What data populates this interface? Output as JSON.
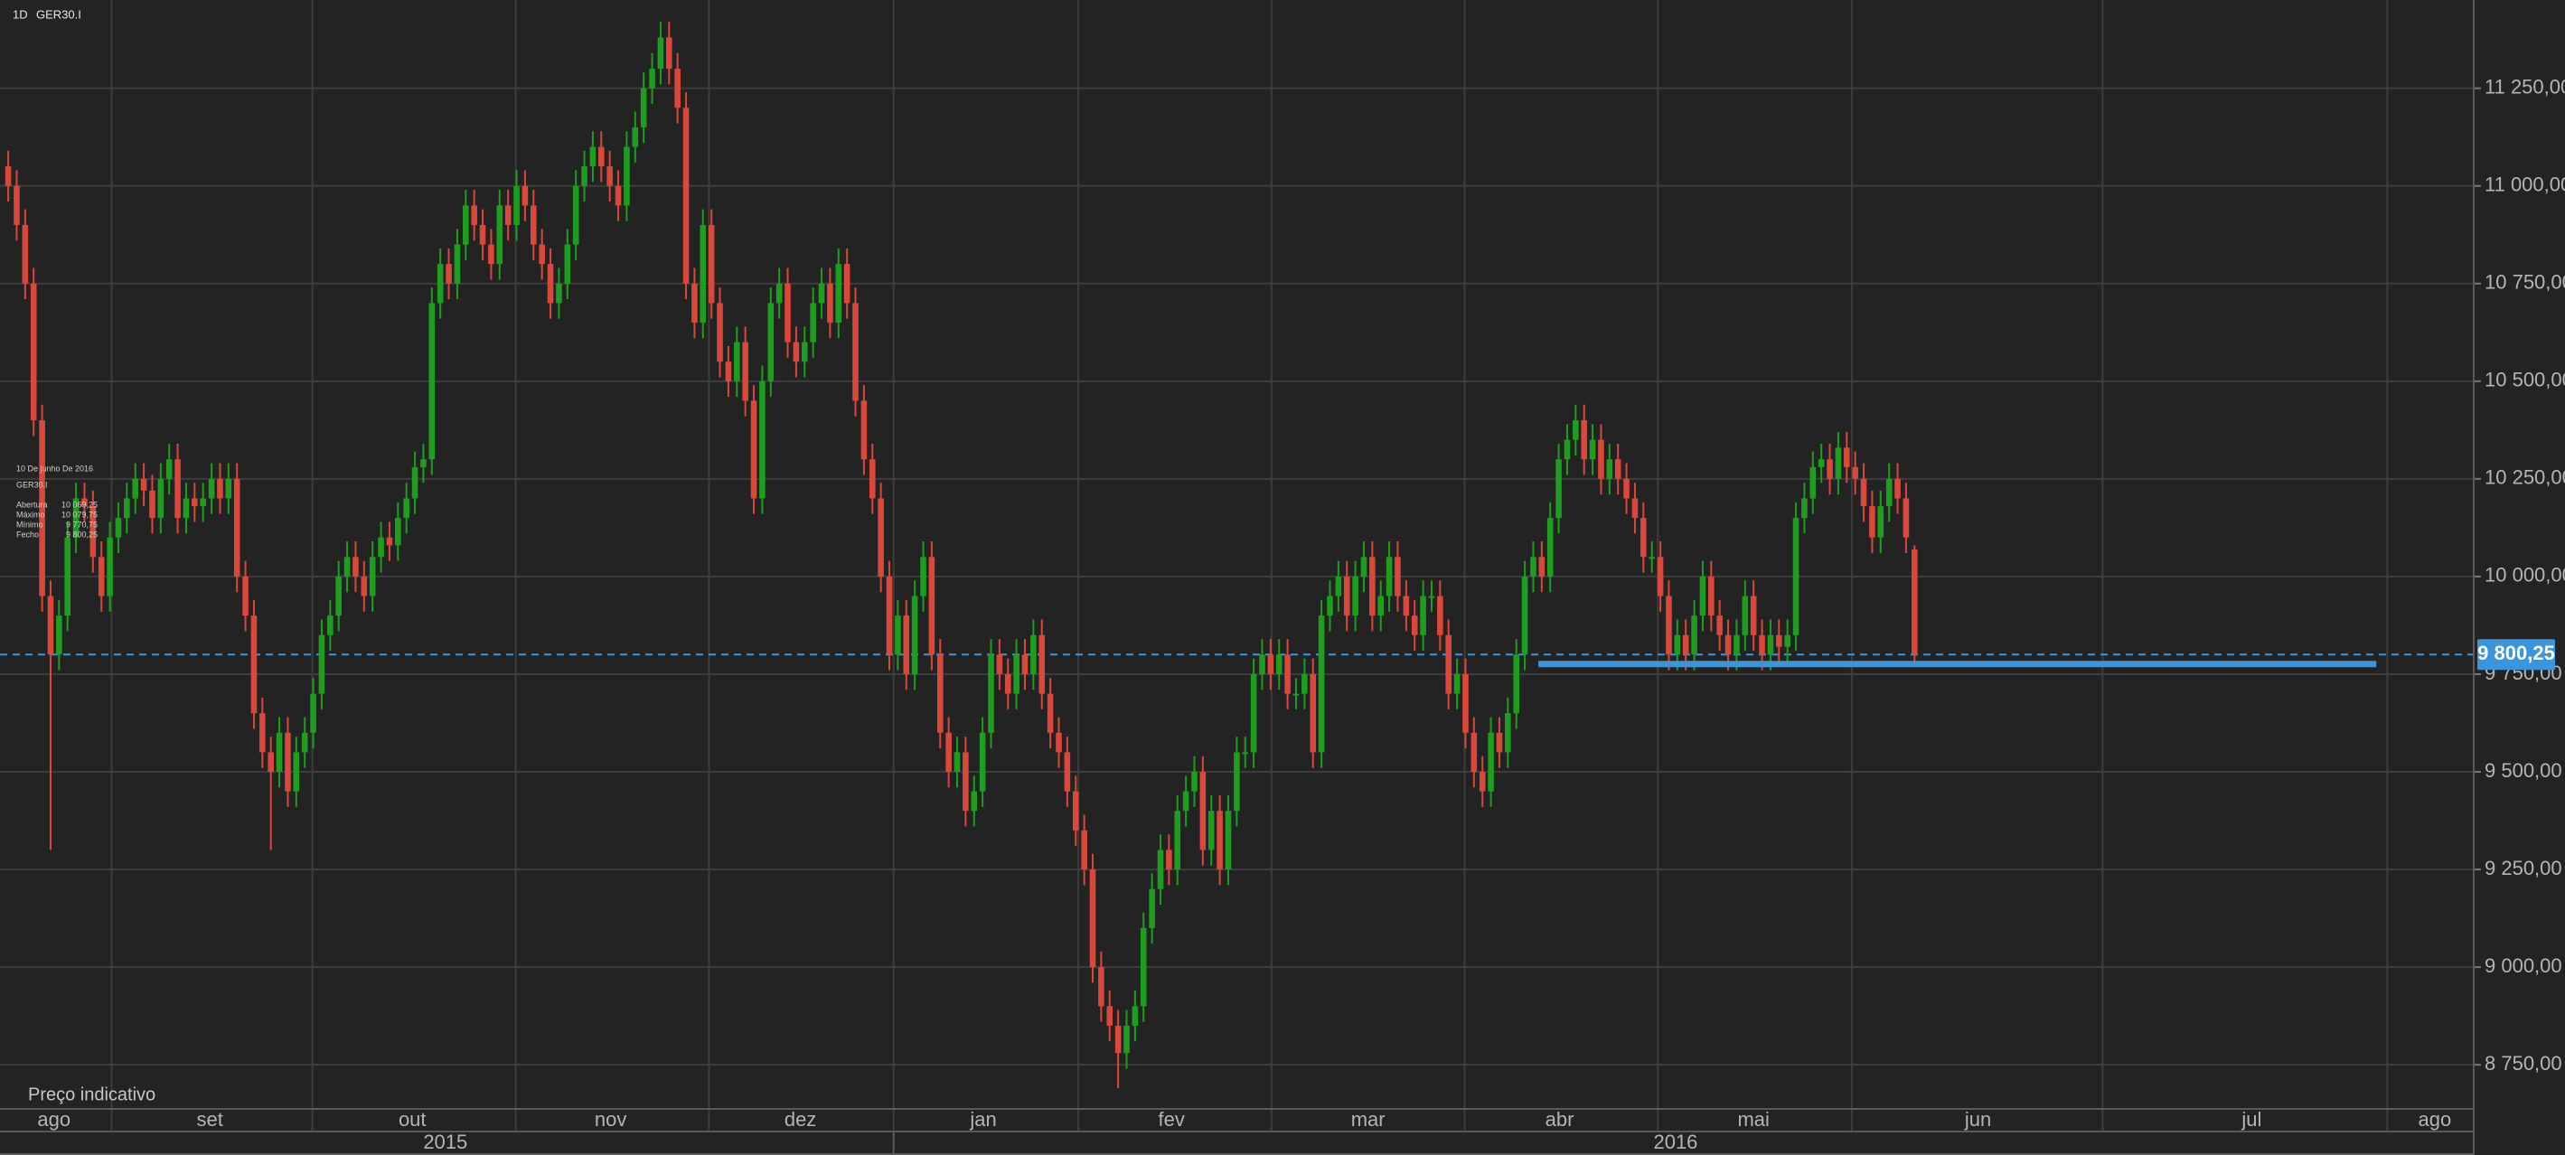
{
  "header": {
    "timeframe": "1D",
    "symbol": "GER30.I"
  },
  "info_box": {
    "date": "10 De junho De 2016",
    "symbol": "GER30.I",
    "rows": [
      {
        "label": "Abertura",
        "value": "10 069,25"
      },
      {
        "label": "Máximo",
        "value": "10 079,75"
      },
      {
        "label": "Mínimo",
        "value": "9 770,75"
      },
      {
        "label": "Fecho",
        "value": "9 800,25"
      }
    ]
  },
  "footer_note": "Preço indicativo",
  "chart_data": {
    "type": "candlestick",
    "up_color": "#1e9e1e",
    "down_color": "#d9483b",
    "xlim": [
      -0.97,
      291.0
    ],
    "ylim": [
      8637,
      11476
    ],
    "yticks": [
      {
        "value": 8750,
        "label": "8 750,00"
      },
      {
        "value": 9000,
        "label": "9 000,00"
      },
      {
        "value": 9250,
        "label": "9 250,00"
      },
      {
        "value": 9500,
        "label": "9 500,00"
      },
      {
        "value": 9750,
        "label": "9 750,00"
      },
      {
        "value": 10000,
        "label": "10 000,00"
      },
      {
        "value": 10250,
        "label": "10 250,00"
      },
      {
        "value": 10500,
        "label": "10 500,00"
      },
      {
        "value": 10750,
        "label": "10 750,00"
      },
      {
        "value": 11000,
        "label": "11 000,00"
      },
      {
        "value": 11250,
        "label": "11 250,00"
      }
    ],
    "month_ticks": [
      {
        "value": 5.4,
        "label": "ago"
      },
      {
        "value": 23.8,
        "label": "set"
      },
      {
        "value": 47.7,
        "label": "out"
      },
      {
        "value": 71.1,
        "label": "nov"
      },
      {
        "value": 93.5,
        "label": "dez"
      },
      {
        "value": 115.1,
        "label": "jan"
      },
      {
        "value": 137.3,
        "label": "fev"
      },
      {
        "value": 160.5,
        "label": "mar"
      },
      {
        "value": 183.1,
        "label": "abr"
      },
      {
        "value": 206.0,
        "label": "mai"
      },
      {
        "value": 232.5,
        "label": "jun"
      },
      {
        "value": 264.8,
        "label": "jul"
      },
      {
        "value": 286.4,
        "label": "ago"
      }
    ],
    "month_boundaries": [
      12.2,
      35.9,
      59.9,
      82.7,
      104.5,
      126.3,
      149.1,
      171.9,
      194.7,
      217.6,
      247.2,
      280.8
    ],
    "year_ticks": [
      {
        "value": 51.6,
        "label": "2015"
      },
      {
        "value": 196.8,
        "label": "2016"
      }
    ],
    "year_boundary": 104.5,
    "grid": true,
    "current_price": {
      "value": 9800.25,
      "label": "9 800,25",
      "color": "#3a95dd"
    },
    "support_line": {
      "value": 9776,
      "x": [
        180.6,
        279.5
      ],
      "color": "#3a95dd"
    },
    "open": [
      11050,
      11000,
      10900,
      10750,
      10400,
      9950,
      9800,
      9900,
      10100,
      10200,
      10180,
      10050,
      9950,
      10100,
      10150,
      10200,
      10250,
      10220,
      10150,
      10250,
      10300,
      10150,
      10200,
      10180,
      10200,
      10250,
      10200,
      10250,
      10000,
      9900,
      9650,
      9550,
      9500,
      9600,
      9450,
      9550,
      9600,
      9700,
      9850,
      9900,
      10000,
      10050,
      10000,
      9950,
      10050,
      10100,
      10080,
      10150,
      10200,
      10280,
      10300,
      10700,
      10800,
      10750,
      10850,
      10950,
      10900,
      10850,
      10800,
      10950,
      10900,
      11000,
      10950,
      10850,
      10800,
      10700,
      10750,
      10850,
      11000,
      11050,
      11100,
      11050,
      11000,
      10950,
      11100,
      11150,
      11250,
      11300,
      11380,
      11300,
      11200,
      10750,
      10650,
      10900,
      10700,
      10550,
      10500,
      10600,
      10450,
      10200,
      10500,
      10700,
      10750,
      10600,
      10550,
      10600,
      10700,
      10750,
      10650,
      10800,
      10700,
      10450,
      10300,
      10200,
      10000,
      9800,
      9900,
      9750,
      9950,
      10050,
      9800,
      9600,
      9500,
      9550,
      9400,
      9450,
      9600,
      9800,
      9750,
      9700,
      9800,
      9750,
      9850,
      9700,
      9600,
      9550,
      9450,
      9350,
      9250,
      9000,
      8900,
      8850,
      8780,
      8850,
      8900,
      9100,
      9200,
      9300,
      9250,
      9400,
      9450,
      9500,
      9300,
      9400,
      9250,
      9400,
      9550,
      9550,
      9750,
      9800,
      9750,
      9800,
      9700,
      9700,
      9750,
      9550,
      9900,
      9950,
      10000,
      9900,
      10000,
      10050,
      9900,
      9950,
      10050,
      9950,
      9900,
      9850,
      9950,
      9950,
      9850,
      9700,
      9750,
      9600,
      9500,
      9450,
      9600,
      9550,
      9650,
      9800,
      10000,
      10050,
      10000,
      10150,
      10300,
      10350,
      10400,
      10300,
      10350,
      10250,
      10300,
      10250,
      10200,
      10150,
      10050,
      10050,
      9950,
      9800,
      9850,
      9800,
      9900,
      10000,
      9900,
      9850,
      9800,
      9850,
      9950,
      9850,
      9800,
      9850,
      9820,
      9850,
      10150,
      10200,
      10280,
      10300,
      10250,
      10330,
      10280,
      10250,
      10180,
      10100,
      10180,
      10250,
      10200,
      10069.25
    ],
    "high": [
      11090,
      11040,
      10940,
      10790,
      10440,
      9990,
      9940,
      10140,
      10240,
      10240,
      10220,
      10090,
      10140,
      10190,
      10240,
      10290,
      10290,
      10260,
      10290,
      10340,
      10340,
      10240,
      10240,
      10240,
      10290,
      10290,
      10290,
      10290,
      10040,
      9940,
      9690,
      9590,
      9640,
      9640,
      9590,
      9640,
      9740,
      9890,
      9940,
      10040,
      10090,
      10090,
      10040,
      10090,
      10140,
      10140,
      10190,
      10240,
      10320,
      10340,
      10740,
      10840,
      10840,
      10890,
      10990,
      10990,
      10940,
      10890,
      10990,
      10990,
      11040,
      11040,
      10990,
      10890,
      10840,
      10790,
      10890,
      11040,
      11090,
      11140,
      11140,
      11090,
      11040,
      11140,
      11190,
      11290,
      11340,
      11420,
      11420,
      11340,
      11240,
      10790,
      10940,
      10940,
      10740,
      10590,
      10640,
      10640,
      10490,
      10540,
      10740,
      10790,
      10790,
      10640,
      10640,
      10740,
      10790,
      10790,
      10840,
      10840,
      10740,
      10490,
      10340,
      10240,
      10040,
      9940,
      9940,
      9990,
      10090,
      10090,
      9840,
      9640,
      9590,
      9590,
      9490,
      9640,
      9840,
      9840,
      9790,
      9840,
      9840,
      9890,
      9890,
      9740,
      9640,
      9590,
      9490,
      9390,
      9290,
      9040,
      8940,
      8890,
      8890,
      8940,
      9140,
      9240,
      9340,
      9340,
      9440,
      9490,
      9540,
      9540,
      9440,
      9440,
      9440,
      9590,
      9590,
      9790,
      9840,
      9840,
      9840,
      9840,
      9740,
      9790,
      9790,
      9940,
      9990,
      10040,
      10040,
      10040,
      10090,
      10090,
      9990,
      10090,
      10090,
      9990,
      9940,
      9990,
      9990,
      9990,
      9890,
      9790,
      9790,
      9640,
      9540,
      9640,
      9640,
      9690,
      9840,
      10040,
      10090,
      10090,
      10190,
      10340,
      10390,
      10440,
      10440,
      10390,
      10390,
      10340,
      10340,
      10290,
      10240,
      10190,
      10090,
      10090,
      9990,
      9890,
      9890,
      9940,
      10040,
      10040,
      9940,
      9890,
      9890,
      9990,
      9990,
      9890,
      9890,
      9890,
      9890,
      10190,
      10240,
      10320,
      10340,
      10340,
      10370,
      10370,
      10320,
      10290,
      10220,
      10220,
      10290,
      10290,
      10240,
      10079.75
    ],
    "low": [
      10960,
      10860,
      10710,
      10360,
      9910,
      9300,
      9760,
      9860,
      10060,
      10140,
      10010,
      9910,
      9910,
      10060,
      10110,
      10160,
      10180,
      10110,
      10110,
      10210,
      10110,
      10110,
      10140,
      10140,
      10160,
      10160,
      10160,
      9960,
      9860,
      9610,
      9510,
      9300,
      9460,
      9410,
      9410,
      9510,
      9560,
      9660,
      9810,
      9860,
      9960,
      9960,
      9910,
      9910,
      10010,
      10040,
      10040,
      10110,
      10160,
      10240,
      10260,
      10660,
      10710,
      10710,
      10810,
      10860,
      10810,
      10760,
      10760,
      10860,
      10860,
      10910,
      10810,
      10760,
      10660,
      10660,
      10710,
      10810,
      10960,
      11010,
      11010,
      10960,
      10910,
      10910,
      11060,
      11110,
      11210,
      11260,
      11260,
      11160,
      10710,
      10610,
      10610,
      10660,
      10510,
      10460,
      10460,
      10410,
      10160,
      10160,
      10460,
      10660,
      10560,
      10510,
      10510,
      10560,
      10660,
      10610,
      10610,
      10660,
      10410,
      10260,
      10160,
      9960,
      9760,
      9760,
      9710,
      9710,
      9910,
      9760,
      9560,
      9460,
      9460,
      9360,
      9360,
      9410,
      9560,
      9710,
      9660,
      9660,
      9710,
      9710,
      9660,
      9560,
      9510,
      9410,
      9310,
      9210,
      8960,
      8860,
      8810,
      8690,
      8740,
      8810,
      8860,
      9060,
      9160,
      9210,
      9210,
      9360,
      9410,
      9260,
      9260,
      9210,
      9210,
      9360,
      9510,
      9510,
      9710,
      9710,
      9710,
      9660,
      9660,
      9660,
      9510,
      9510,
      9860,
      9910,
      9860,
      9860,
      9960,
      9860,
      9860,
      9910,
      9910,
      9860,
      9810,
      9810,
      9910,
      9810,
      9660,
      9660,
      9560,
      9460,
      9410,
      9410,
      9510,
      9510,
      9610,
      9760,
      9960,
      9960,
      9960,
      10110,
      10260,
      10310,
      10260,
      10260,
      10210,
      10210,
      10210,
      10160,
      10110,
      10010,
      10010,
      9910,
      9760,
      9760,
      9760,
      9760,
      9860,
      9860,
      9810,
      9760,
      9760,
      9810,
      9810,
      9760,
      9760,
      9780,
      9780,
      9810,
      10110,
      10160,
      10240,
      10210,
      10210,
      10240,
      10210,
      10140,
      10060,
      10060,
      10140,
      10160,
      10060,
      9770.75
    ],
    "close": [
      11000,
      10900,
      10750,
      10400,
      9950,
      9800,
      9900,
      10100,
      10200,
      10180,
      10050,
      9950,
      10100,
      10150,
      10200,
      10250,
      10220,
      10150,
      10250,
      10300,
      10150,
      10200,
      10180,
      10200,
      10250,
      10200,
      10250,
      10000,
      9900,
      9650,
      9550,
      9500,
      9600,
      9450,
      9550,
      9600,
      9700,
      9850,
      9900,
      10000,
      10050,
      10000,
      9950,
      10050,
      10100,
      10080,
      10150,
      10200,
      10280,
      10300,
      10700,
      10800,
      10750,
      10850,
      10950,
      10900,
      10850,
      10800,
      10950,
      10900,
      11000,
      10950,
      10850,
      10800,
      10700,
      10750,
      10850,
      11000,
      11050,
      11100,
      11050,
      11000,
      10950,
      11100,
      11150,
      11250,
      11300,
      11380,
      11300,
      11200,
      10750,
      10650,
      10900,
      10700,
      10550,
      10500,
      10600,
      10450,
      10200,
      10500,
      10700,
      10750,
      10600,
      10550,
      10600,
      10700,
      10750,
      10650,
      10800,
      10700,
      10450,
      10300,
      10200,
      10000,
      9800,
      9900,
      9750,
      9950,
      10050,
      9800,
      9600,
      9500,
      9550,
      9400,
      9450,
      9600,
      9800,
      9750,
      9700,
      9800,
      9750,
      9850,
      9700,
      9600,
      9550,
      9450,
      9350,
      9250,
      9000,
      8900,
      8850,
      8780,
      8850,
      8900,
      9100,
      9200,
      9300,
      9250,
      9400,
      9450,
      9500,
      9300,
      9400,
      9250,
      9400,
      9550,
      9550,
      9750,
      9800,
      9750,
      9800,
      9700,
      9700,
      9750,
      9550,
      9900,
      9950,
      10000,
      9900,
      10000,
      10050,
      9900,
      9950,
      10050,
      9950,
      9900,
      9850,
      9950,
      9950,
      9850,
      9700,
      9750,
      9600,
      9500,
      9450,
      9600,
      9550,
      9650,
      9800,
      10000,
      10050,
      10000,
      10150,
      10300,
      10350,
      10400,
      10300,
      10350,
      10250,
      10300,
      10250,
      10200,
      10150,
      10050,
      10050,
      9950,
      9800,
      9850,
      9800,
      9900,
      10000,
      9900,
      9850,
      9800,
      9850,
      9950,
      9850,
      9800,
      9850,
      9820,
      9850,
      10150,
      10200,
      10280,
      10300,
      10250,
      10330,
      10280,
      10250,
      10180,
      10100,
      10180,
      10250,
      10200,
      10100,
      9800.25
    ]
  }
}
